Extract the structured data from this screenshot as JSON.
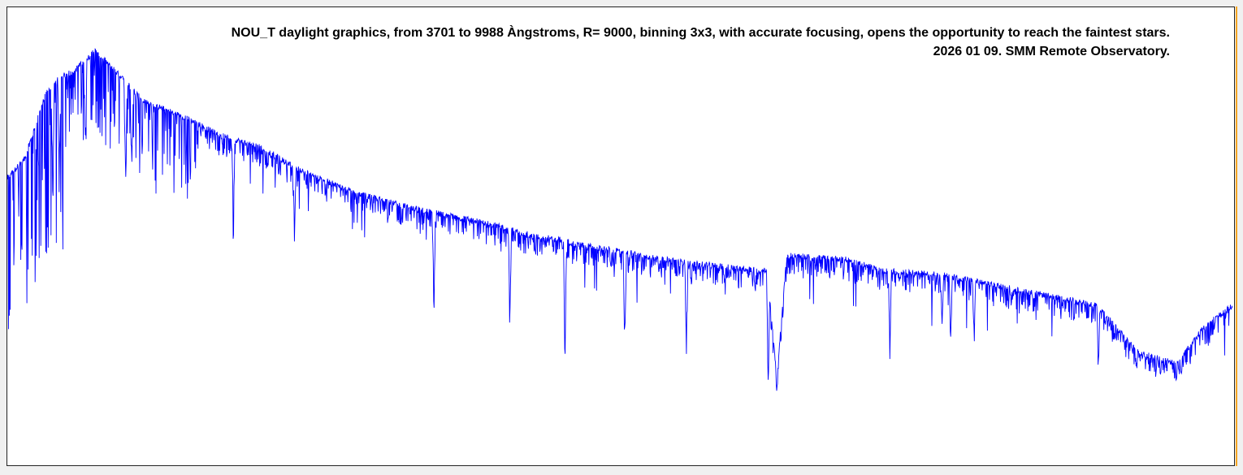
{
  "title_line1": "NOU_T daylight graphics, from  3701 to 9988 Àngstroms, R= 9000,  binning 3x3, with accurate focusing, opens the opportunity to reach the faintest stars.",
  "title_line2": "2026 01 09. SMM Remote Observatory.",
  "colors": {
    "line": "#0000ff",
    "background": "#ffffff",
    "frame": "#222222",
    "edge_accent": "#f5a623"
  },
  "chart_data": {
    "type": "line",
    "title": "NOU_T daylight graphics, from  3701 to 9988 Àngstroms, R= 9000,  binning 3x3, with accurate focusing, opens the opportunity to reach the faintest stars.",
    "subtitle": "2026 01 09. SMM Remote Observatory.",
    "xlabel": "",
    "ylabel": "",
    "xlim": [
      3701,
      9988
    ],
    "ylim": [
      0,
      1
    ],
    "grid": false,
    "legend": "none",
    "axes_visible": false,
    "series": [
      {
        "x": [
          3701,
          3790,
          3900,
          3970,
          4050,
          4150,
          4250,
          4400,
          4600,
          4800,
          5000,
          5170,
          5300,
          5500,
          5800,
          6000,
          6280,
          6400,
          6563,
          6600,
          6870,
          6950,
          7200,
          7400,
          7600,
          7650,
          7700,
          8000,
          8200,
          8500,
          8700,
          9000,
          9300,
          9500,
          9700,
          9850,
          9988
        ],
        "y": [
          0.6,
          0.65,
          0.82,
          0.86,
          0.88,
          0.93,
          0.88,
          0.8,
          0.76,
          0.71,
          0.68,
          0.63,
          0.6,
          0.56,
          0.52,
          0.5,
          0.47,
          0.45,
          0.44,
          0.43,
          0.41,
          0.4,
          0.38,
          0.37,
          0.36,
          0.08,
          0.4,
          0.39,
          0.36,
          0.35,
          0.33,
          0.3,
          0.27,
          0.15,
          0.12,
          0.22,
          0.27
        ]
      }
    ],
    "absorption_features": [
      {
        "x": 3934,
        "depth": 0.35
      },
      {
        "x": 3968,
        "depth": 0.35
      },
      {
        "x": 4102,
        "depth": 0.3
      },
      {
        "x": 4308,
        "depth": 0.35
      },
      {
        "x": 4340,
        "depth": 0.3
      },
      {
        "x": 4861,
        "depth": 0.3
      },
      {
        "x": 5175,
        "depth": 0.25
      },
      {
        "x": 5890,
        "depth": 0.3
      },
      {
        "x": 6280,
        "depth": 0.3
      },
      {
        "x": 6563,
        "depth": 0.4
      },
      {
        "x": 6870,
        "depth": 0.3
      },
      {
        "x": 7186,
        "depth": 0.3
      },
      {
        "x": 7605,
        "depth": 0.32
      },
      {
        "x": 8230,
        "depth": 0.25
      },
      {
        "x": 8498,
        "depth": 0.2
      },
      {
        "x": 8542,
        "depth": 0.2
      },
      {
        "x": 8662,
        "depth": 0.2
      },
      {
        "x": 9300,
        "depth": 0.2
      }
    ]
  }
}
